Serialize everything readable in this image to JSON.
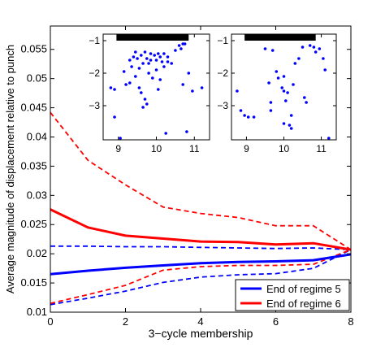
{
  "chart_data": [
    {
      "type": "line",
      "xlabel": "3−cycle membership",
      "ylabel": "Average magnitude of displacement relative to punch",
      "xlim": [
        0,
        8
      ],
      "ylim": [
        0.01,
        0.059
      ],
      "xticks": [
        0,
        2,
        4,
        6,
        8
      ],
      "xtick_labels": [
        "0",
        "2",
        "4",
        "6",
        "8"
      ],
      "yticks": [
        0.01,
        0.015,
        0.02,
        0.025,
        0.03,
        0.035,
        0.04,
        0.045,
        0.05,
        0.055
      ],
      "ytick_labels": [
        "0.01",
        "0.015",
        "0.02",
        "0.025",
        "0.03",
        "0.035",
        "0.04",
        "0.045",
        "0.05",
        "0.055"
      ],
      "grid": false,
      "legend_position": "bottom-right",
      "x": [
        0,
        1,
        2,
        3,
        4,
        5,
        6,
        7,
        8
      ],
      "series": [
        {
          "name": "End of regime 5",
          "color": "#0000ff",
          "style": "solid",
          "values": [
            0.0165,
            0.0171,
            0.0176,
            0.018,
            0.0184,
            0.0186,
            0.0187,
            0.0189,
            0.0199
          ]
        },
        {
          "name": "End of regime 6",
          "color": "#ff0000",
          "style": "solid",
          "values": [
            0.0276,
            0.0245,
            0.0231,
            0.0226,
            0.0221,
            0.022,
            0.0216,
            0.0218,
            0.0207
          ]
        },
        {
          "color": "#0000ff",
          "style": "dashed",
          "values": [
            0.0213,
            0.0213,
            0.0212,
            0.0212,
            0.0211,
            0.021,
            0.0209,
            0.021,
            0.0207
          ]
        },
        {
          "color": "#0000ff",
          "style": "dashed",
          "values": [
            0.0113,
            0.0124,
            0.0136,
            0.0151,
            0.016,
            0.0164,
            0.0166,
            0.0175,
            0.0207
          ]
        },
        {
          "color": "#ff0000",
          "style": "dashed",
          "values": [
            0.0442,
            0.036,
            0.0318,
            0.028,
            0.0269,
            0.0262,
            0.0248,
            0.0248,
            0.0207
          ]
        },
        {
          "color": "#ff0000",
          "style": "dashed",
          "values": [
            0.0115,
            0.013,
            0.0146,
            0.0172,
            0.0178,
            0.018,
            0.018,
            0.0182,
            0.0207
          ]
        }
      ]
    },
    {
      "type": "scatter",
      "xlim": [
        8.6,
        11.4
      ],
      "ylim": [
        -4.05,
        -0.8
      ],
      "xticks": [
        9,
        10,
        11
      ],
      "xtick_labels": [
        "9",
        "10",
        "11"
      ],
      "yticks": [
        -1,
        -2,
        -3
      ],
      "ytick_labels": [
        "−1",
        "−2",
        "−3"
      ],
      "color": "#0000ff",
      "bar_y": [
        -1.0,
        -0.8
      ],
      "points": [
        [
          8.8,
          -2.45
        ],
        [
          8.9,
          -2.5
        ],
        [
          8.9,
          -3.35
        ],
        [
          9.05,
          -4.0
        ],
        [
          9.15,
          -1.95
        ],
        [
          9.2,
          -2.35
        ],
        [
          9.3,
          -1.6
        ],
        [
          9.3,
          -2.3
        ],
        [
          9.35,
          -1.8
        ],
        [
          9.4,
          -1.5
        ],
        [
          9.45,
          -1.35
        ],
        [
          9.45,
          -2.1
        ],
        [
          9.5,
          -1.55
        ],
        [
          9.55,
          -1.85
        ],
        [
          9.55,
          -2.45
        ],
        [
          9.6,
          -1.45
        ],
        [
          9.6,
          -2.6
        ],
        [
          9.65,
          -1.7
        ],
        [
          9.65,
          -3.05
        ],
        [
          9.7,
          -1.35
        ],
        [
          9.7,
          -2.8
        ],
        [
          9.75,
          -1.55
        ],
        [
          9.75,
          -2.95
        ],
        [
          9.8,
          -1.7
        ],
        [
          9.8,
          -2.0
        ],
        [
          9.85,
          -1.4
        ],
        [
          9.85,
          -1.6
        ],
        [
          9.9,
          -2.15
        ],
        [
          9.95,
          -1.45
        ],
        [
          10.0,
          -1.6
        ],
        [
          10.0,
          -1.9
        ],
        [
          10.05,
          -1.4
        ],
        [
          10.05,
          -2.5
        ],
        [
          10.1,
          -1.5
        ],
        [
          10.1,
          -2.2
        ],
        [
          10.15,
          -1.65
        ],
        [
          10.2,
          -1.4
        ],
        [
          10.2,
          -1.8
        ],
        [
          10.25,
          -3.85
        ],
        [
          10.3,
          -1.5
        ],
        [
          10.3,
          -1.65
        ],
        [
          10.4,
          -1.7
        ],
        [
          10.5,
          -1.3
        ],
        [
          10.6,
          -1.15
        ],
        [
          10.65,
          -1.25
        ],
        [
          10.7,
          -1.1
        ],
        [
          10.7,
          -2.35
        ],
        [
          10.75,
          -1.1
        ],
        [
          10.8,
          -3.8
        ],
        [
          10.85,
          -2.0
        ],
        [
          10.95,
          -2.55
        ],
        [
          11.2,
          -2.45
        ]
      ]
    },
    {
      "type": "scatter",
      "xlim": [
        8.6,
        11.4
      ],
      "ylim": [
        -4.05,
        -0.8
      ],
      "xticks": [
        9,
        10,
        11
      ],
      "xtick_labels": [
        "9",
        "10",
        "11"
      ],
      "yticks": [
        -1,
        -2,
        -3
      ],
      "ytick_labels": [
        "−1",
        "−2",
        "−3"
      ],
      "color": "#0000ff",
      "bar_y": [
        -1.0,
        -0.8
      ],
      "points": [
        [
          8.75,
          -2.55
        ],
        [
          8.85,
          -3.15
        ],
        [
          8.95,
          -3.3
        ],
        [
          9.05,
          -3.35
        ],
        [
          9.2,
          -3.35
        ],
        [
          9.5,
          -1.25
        ],
        [
          9.6,
          -2.3
        ],
        [
          9.65,
          -2.9
        ],
        [
          9.65,
          -3.15
        ],
        [
          9.7,
          -1.3
        ],
        [
          9.8,
          -1.95
        ],
        [
          9.85,
          -2.15
        ],
        [
          9.95,
          -2.45
        ],
        [
          10.0,
          -2.1
        ],
        [
          10.0,
          -2.55
        ],
        [
          10.0,
          -3.55
        ],
        [
          10.05,
          -2.85
        ],
        [
          10.1,
          -2.6
        ],
        [
          10.15,
          -3.6
        ],
        [
          10.2,
          -3.3
        ],
        [
          10.2,
          -3.7
        ],
        [
          10.25,
          -2.35
        ],
        [
          10.3,
          -1.7
        ],
        [
          10.4,
          -1.55
        ],
        [
          10.5,
          -1.2
        ],
        [
          10.55,
          -2.75
        ],
        [
          10.6,
          -2.9
        ],
        [
          10.7,
          -1.15
        ],
        [
          10.8,
          -1.2
        ],
        [
          10.85,
          -1.35
        ],
        [
          10.95,
          -1.25
        ],
        [
          11.05,
          -1.55
        ],
        [
          11.1,
          -1.9
        ],
        [
          11.2,
          -4.0
        ]
      ]
    }
  ]
}
